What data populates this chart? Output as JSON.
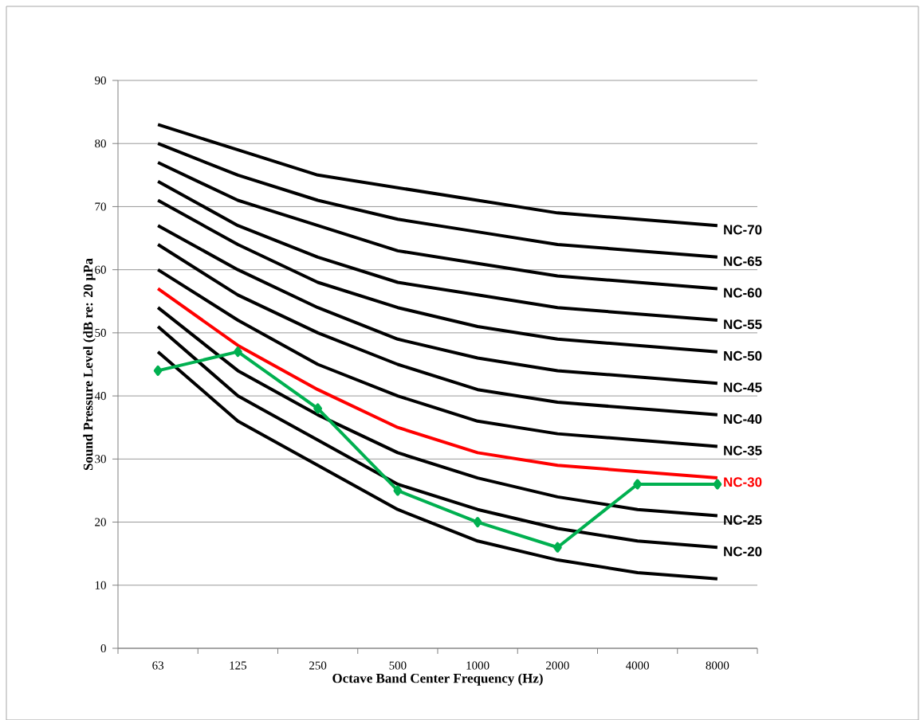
{
  "chart_data": {
    "type": "line",
    "xlabel": "Octave Band Center Frequency (Hz)",
    "ylabel": "Sound Pressure Level (dB re: 20 μPa",
    "categories": [
      "63",
      "125",
      "250",
      "500",
      "1000",
      "2000",
      "4000",
      "8000"
    ],
    "ylim": [
      0,
      90
    ],
    "yticks": [
      0,
      10,
      20,
      30,
      40,
      50,
      60,
      70,
      80,
      90
    ],
    "grid": "y",
    "series": [
      {
        "name": "NC-70",
        "color": "#000000",
        "values": [
          83,
          79,
          75,
          73,
          71,
          69,
          68,
          67
        ]
      },
      {
        "name": "NC-65",
        "color": "#000000",
        "values": [
          80,
          75,
          71,
          68,
          66,
          64,
          63,
          62
        ]
      },
      {
        "name": "NC-60",
        "color": "#000000",
        "values": [
          77,
          71,
          67,
          63,
          61,
          59,
          58,
          57
        ]
      },
      {
        "name": "NC-55",
        "color": "#000000",
        "values": [
          74,
          67,
          62,
          58,
          56,
          54,
          53,
          52
        ]
      },
      {
        "name": "NC-50",
        "color": "#000000",
        "values": [
          71,
          64,
          58,
          54,
          51,
          49,
          48,
          47
        ]
      },
      {
        "name": "NC-45",
        "color": "#000000",
        "values": [
          67,
          60,
          54,
          49,
          46,
          44,
          43,
          42
        ]
      },
      {
        "name": "NC-40",
        "color": "#000000",
        "values": [
          64,
          56,
          50,
          45,
          41,
          39,
          38,
          37
        ]
      },
      {
        "name": "NC-35",
        "color": "#000000",
        "values": [
          60,
          52,
          45,
          40,
          36,
          34,
          33,
          32
        ]
      },
      {
        "name": "NC-30",
        "color": "#ff0000",
        "values": [
          57,
          48,
          41,
          35,
          31,
          29,
          28,
          27
        ]
      },
      {
        "name": "NC-25",
        "color": "#000000",
        "values": [
          54,
          44,
          37,
          31,
          27,
          24,
          22,
          21
        ]
      },
      {
        "name": "NC-20",
        "color": "#000000",
        "values": [
          51,
          40,
          33,
          26,
          22,
          19,
          17,
          16
        ]
      },
      {
        "color": "#000000",
        "values": [
          47,
          36,
          29,
          22,
          17,
          14,
          12,
          11
        ]
      },
      {
        "color": "#00b050",
        "marker": "diamond",
        "values": [
          44,
          47,
          38,
          25,
          20,
          16,
          26,
          26
        ]
      }
    ]
  }
}
